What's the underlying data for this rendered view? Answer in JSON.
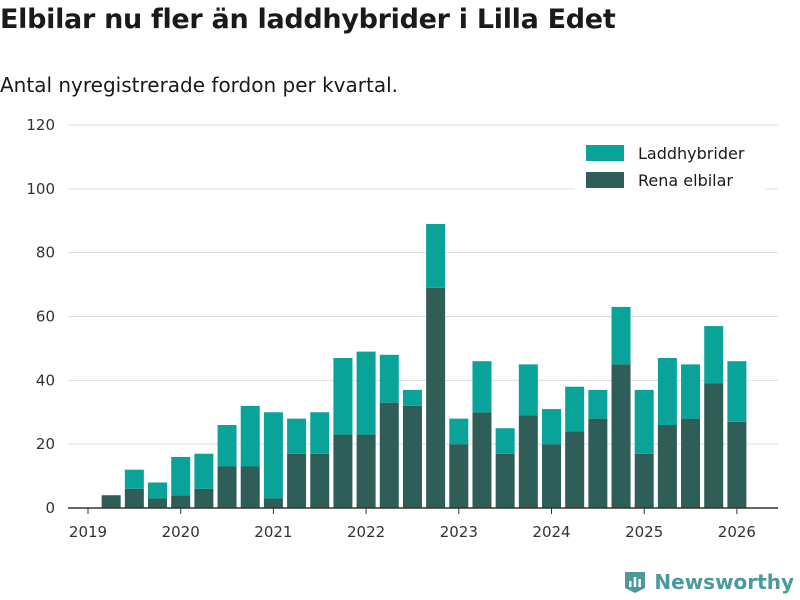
{
  "header": {
    "title": "Elbilar nu fler än laddhybrider i Lilla Edet",
    "subtitle": "Antal nyregistrerade fordon per kvartal."
  },
  "branding": {
    "name": "Newsworthy",
    "icon": "newsworthy-logo-icon"
  },
  "colors": {
    "laddhybrider": "#0aa39a",
    "rena_elbilar": "#2f5d57",
    "grid": "#dddddd",
    "axis": "#333333"
  },
  "chart_data": {
    "type": "bar",
    "stacked": true,
    "title": "Elbilar nu fler än laddhybrider i Lilla Edet",
    "subtitle": "Antal nyregistrerade fordon per kvartal.",
    "xlabel": "",
    "ylabel": "",
    "ylim": [
      0,
      120
    ],
    "yticks": [
      0,
      20,
      40,
      60,
      80,
      100,
      120
    ],
    "xticks": [
      "2019",
      "2020",
      "2021",
      "2022",
      "2023",
      "2024",
      "2025",
      "2026"
    ],
    "grid": true,
    "legend_position": "top-right",
    "categories": [
      "2019 Q1",
      "2019 Q2",
      "2019 Q3",
      "2019 Q4",
      "2020 Q1",
      "2020 Q2",
      "2020 Q3",
      "2020 Q4",
      "2021 Q1",
      "2021 Q2",
      "2021 Q3",
      "2021 Q4",
      "2022 Q1",
      "2022 Q2",
      "2022 Q3",
      "2022 Q4",
      "2023 Q1",
      "2023 Q2",
      "2023 Q3",
      "2023 Q4",
      "2024 Q1",
      "2024 Q2",
      "2024 Q3",
      "2024 Q4",
      "2025 Q1",
      "2025 Q2",
      "2025 Q3",
      "2025 Q4"
    ],
    "series": [
      {
        "name": "Rena elbilar",
        "color": "#2f5d57",
        "values": [
          4,
          6,
          3,
          4,
          6,
          13,
          13,
          3,
          17,
          17,
          23,
          23,
          33,
          32,
          69,
          20,
          30,
          17,
          29,
          20,
          24,
          28,
          45,
          17,
          26,
          28,
          39,
          27
        ]
      },
      {
        "name": "Laddhybrider",
        "color": "#0aa39a",
        "values": [
          0,
          6,
          5,
          12,
          11,
          13,
          19,
          27,
          11,
          13,
          24,
          26,
          15,
          5,
          20,
          8,
          16,
          8,
          16,
          11,
          14,
          9,
          18,
          20,
          21,
          17,
          18,
          19
        ]
      }
    ]
  }
}
